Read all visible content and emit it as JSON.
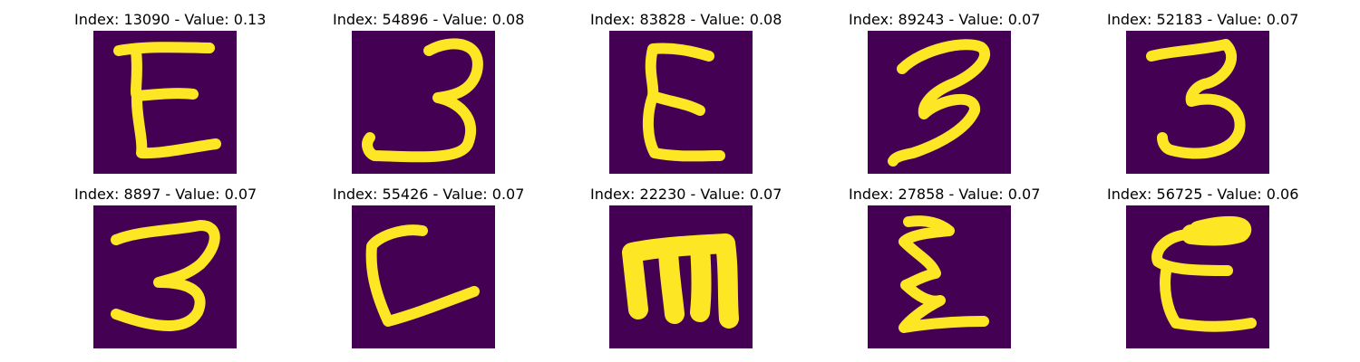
{
  "colors": {
    "background": "#440154",
    "stroke_edge": "#21918c",
    "stroke_core": "#fde725"
  },
  "figure": {
    "panels": [
      {
        "title": "Index: 13090 - Value: 0.13",
        "index": 13090,
        "value": 0.13,
        "glyph": "E"
      },
      {
        "title": "Index: 54896 - Value: 0.08",
        "index": 54896,
        "value": 0.08,
        "glyph": "3"
      },
      {
        "title": "Index: 83828 - Value: 0.08",
        "index": 83828,
        "value": 0.08,
        "glyph": "E"
      },
      {
        "title": "Index: 89243 - Value: 0.07",
        "index": 89243,
        "value": 0.07,
        "glyph": "3"
      },
      {
        "title": "Index: 52183 - Value: 0.07",
        "index": 52183,
        "value": 0.07,
        "glyph": "3"
      },
      {
        "title": "Index: 8897 - Value: 0.07",
        "index": 8897,
        "value": 0.07,
        "glyph": "3"
      },
      {
        "title": "Index: 55426 - Value: 0.07",
        "index": 55426,
        "value": 0.07,
        "glyph": "L"
      },
      {
        "title": "Index: 22230 - Value: 0.07",
        "index": 22230,
        "value": 0.07,
        "glyph": "m"
      },
      {
        "title": "Index: 27858 - Value: 0.07",
        "index": 27858,
        "value": 0.07,
        "glyph": "E"
      },
      {
        "title": "Index: 56725 - Value: 0.06",
        "index": 56725,
        "value": 0.06,
        "glyph": "E"
      }
    ]
  }
}
